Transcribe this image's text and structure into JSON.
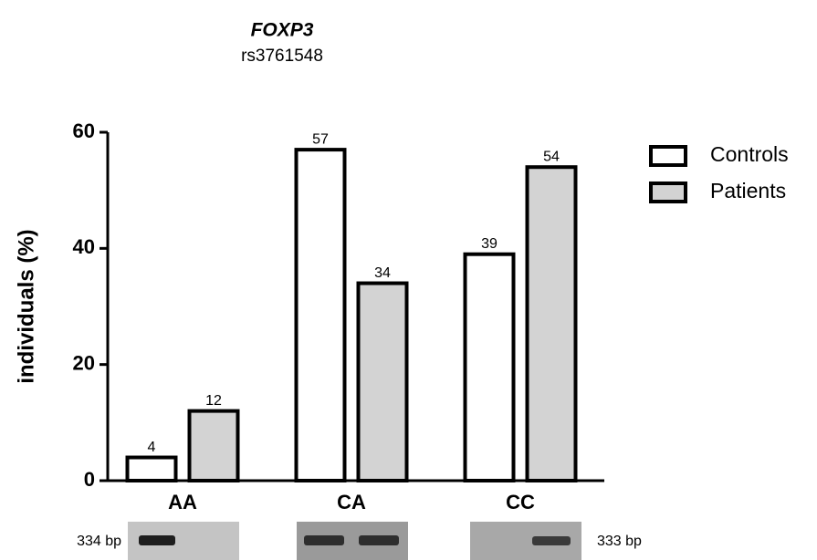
{
  "chart_data": {
    "type": "bar",
    "title": "FOXP3",
    "subtitle": "rs3761548",
    "y_label": "individuals (%)",
    "categories": [
      "AA",
      "CA",
      "CC"
    ],
    "series": [
      {
        "name": "Controls",
        "color": "#ffffff",
        "values": [
          4,
          57,
          39
        ]
      },
      {
        "name": "Patients",
        "color": "#d3d3d3",
        "values": [
          12,
          34,
          54
        ]
      }
    ],
    "ylim": [
      0,
      60
    ],
    "yticks": [
      0,
      20,
      40,
      60
    ],
    "grid": false,
    "legend": "right",
    "annotations": [
      "334 bp",
      "333 bp"
    ]
  }
}
